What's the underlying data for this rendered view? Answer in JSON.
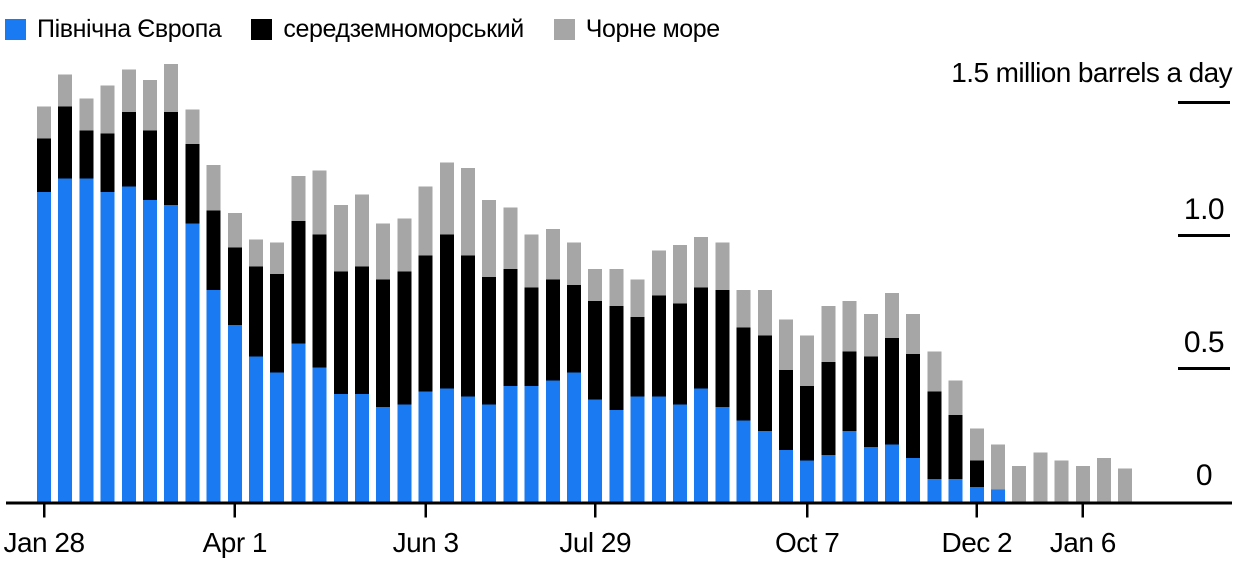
{
  "page": {
    "background": "#ffffff"
  },
  "legend": {
    "items": [
      {
        "id": "northern-europe",
        "label": "Північна Європа",
        "color": "#1a7af2"
      },
      {
        "id": "mediterranean",
        "label": "середземноморський",
        "color": "#000000"
      },
      {
        "id": "black-sea",
        "label": "Чорне море",
        "color": "#a6a6a6"
      }
    ]
  },
  "chart_data": {
    "type": "bar",
    "stacked": true,
    "title": "1.5 million barrels a day",
    "unit": "million barrels a day",
    "legend_position": "top-left",
    "axis_side": "right",
    "grid": false,
    "y_axis": {
      "range": [
        0,
        1.5
      ],
      "ticks": [
        {
          "value": 1.5,
          "label": "1.5 million barrels a day",
          "is_title": true,
          "underline": true
        },
        {
          "value": 1.0,
          "label": "1.0",
          "is_title": false,
          "underline": true
        },
        {
          "value": 0.5,
          "label": "0.5",
          "is_title": false,
          "underline": true
        },
        {
          "value": 0,
          "label": "0",
          "is_title": false,
          "underline": false
        }
      ]
    },
    "x_axis": {
      "bar_count": 52,
      "frequency": "weekly",
      "ticks": [
        {
          "bar_index": 0,
          "label": "Jan 28"
        },
        {
          "bar_index": 9,
          "label": "Apr 1"
        },
        {
          "bar_index": 18,
          "label": "Jun 3"
        },
        {
          "bar_index": 26,
          "label": "Jul 29"
        },
        {
          "bar_index": 36,
          "label": "Oct 7"
        },
        {
          "bar_index": 44,
          "label": "Dec 2"
        },
        {
          "bar_index": 49,
          "label": "Jan 6"
        }
      ]
    },
    "series": [
      {
        "name": "Північна Європа",
        "color": "#1a7af2",
        "values": [
          1.17,
          1.22,
          1.22,
          1.17,
          1.19,
          1.14,
          1.12,
          1.05,
          0.8,
          0.67,
          0.55,
          0.49,
          0.6,
          0.51,
          0.41,
          0.41,
          0.36,
          0.37,
          0.42,
          0.43,
          0.4,
          0.37,
          0.44,
          0.44,
          0.46,
          0.49,
          0.39,
          0.35,
          0.4,
          0.4,
          0.37,
          0.43,
          0.36,
          0.31,
          0.27,
          0.2,
          0.16,
          0.18,
          0.27,
          0.21,
          0.22,
          0.17,
          0.09,
          0.09,
          0.06,
          0.05,
          0,
          0,
          0,
          0,
          0,
          0
        ]
      },
      {
        "name": "середземноморський",
        "color": "#000000",
        "values": [
          0.2,
          0.27,
          0.18,
          0.22,
          0.28,
          0.26,
          0.35,
          0.3,
          0.3,
          0.29,
          0.34,
          0.37,
          0.46,
          0.5,
          0.46,
          0.48,
          0.48,
          0.5,
          0.51,
          0.58,
          0.53,
          0.48,
          0.44,
          0.37,
          0.38,
          0.33,
          0.37,
          0.39,
          0.3,
          0.38,
          0.38,
          0.38,
          0.44,
          0.35,
          0.36,
          0.3,
          0.28,
          0.35,
          0.3,
          0.34,
          0.4,
          0.39,
          0.33,
          0.24,
          0.1,
          0,
          0,
          0,
          0,
          0,
          0,
          0
        ]
      },
      {
        "name": "Чорне море",
        "color": "#a6a6a6",
        "values": [
          0.12,
          0.12,
          0.12,
          0.18,
          0.16,
          0.19,
          0.18,
          0.13,
          0.17,
          0.13,
          0.1,
          0.12,
          0.17,
          0.24,
          0.25,
          0.27,
          0.21,
          0.2,
          0.26,
          0.27,
          0.33,
          0.29,
          0.23,
          0.2,
          0.19,
          0.16,
          0.12,
          0.14,
          0.14,
          0.17,
          0.22,
          0.19,
          0.18,
          0.14,
          0.17,
          0.19,
          0.19,
          0.21,
          0.19,
          0.16,
          0.17,
          0.15,
          0.15,
          0.13,
          0.12,
          0.17,
          0.14,
          0.19,
          0.16,
          0.14,
          0.17,
          0.13
        ]
      }
    ]
  }
}
